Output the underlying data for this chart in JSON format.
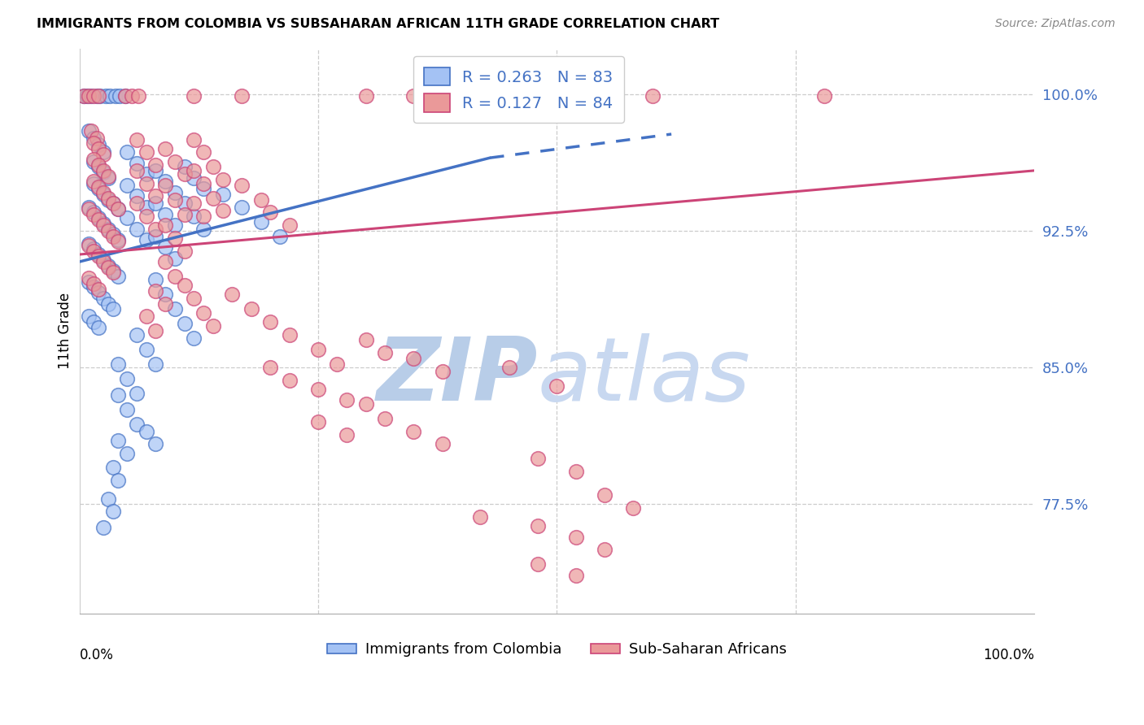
{
  "title": "IMMIGRANTS FROM COLOMBIA VS SUBSAHARAN AFRICAN 11TH GRADE CORRELATION CHART",
  "source": "Source: ZipAtlas.com",
  "ylabel": "11th Grade",
  "yticks": [
    0.775,
    0.85,
    0.925,
    1.0
  ],
  "ytick_labels": [
    "77.5%",
    "85.0%",
    "92.5%",
    "100.0%"
  ],
  "xlim": [
    0.0,
    1.0
  ],
  "ylim": [
    0.715,
    1.025
  ],
  "blue_color": "#a4c2f4",
  "blue_edge": "#4472c4",
  "pink_color": "#ea9999",
  "pink_edge": "#cc4477",
  "watermark_zip": "ZIP",
  "watermark_atlas": "atlas",
  "watermark_color": "#c8d8f0",
  "background_color": "#ffffff",
  "blue_trend_solid": [
    0.0,
    0.908,
    0.43,
    0.965
  ],
  "blue_trend_dashed": [
    0.43,
    0.965,
    0.62,
    0.978
  ],
  "pink_trend": [
    0.0,
    0.912,
    1.0,
    0.958
  ],
  "blue_points": [
    [
      0.005,
      0.999
    ],
    [
      0.008,
      0.999
    ],
    [
      0.012,
      0.999
    ],
    [
      0.018,
      0.999
    ],
    [
      0.022,
      0.999
    ],
    [
      0.028,
      0.999
    ],
    [
      0.032,
      0.999
    ],
    [
      0.038,
      0.999
    ],
    [
      0.042,
      0.999
    ],
    [
      0.048,
      0.999
    ],
    [
      0.01,
      0.98
    ],
    [
      0.015,
      0.976
    ],
    [
      0.02,
      0.972
    ],
    [
      0.025,
      0.968
    ],
    [
      0.015,
      0.963
    ],
    [
      0.02,
      0.96
    ],
    [
      0.025,
      0.957
    ],
    [
      0.03,
      0.954
    ],
    [
      0.015,
      0.951
    ],
    [
      0.02,
      0.948
    ],
    [
      0.025,
      0.945
    ],
    [
      0.03,
      0.942
    ],
    [
      0.035,
      0.94
    ],
    [
      0.04,
      0.937
    ],
    [
      0.01,
      0.938
    ],
    [
      0.015,
      0.935
    ],
    [
      0.02,
      0.932
    ],
    [
      0.025,
      0.929
    ],
    [
      0.03,
      0.926
    ],
    [
      0.035,
      0.923
    ],
    [
      0.04,
      0.92
    ],
    [
      0.01,
      0.918
    ],
    [
      0.015,
      0.915
    ],
    [
      0.02,
      0.912
    ],
    [
      0.025,
      0.909
    ],
    [
      0.03,
      0.906
    ],
    [
      0.035,
      0.903
    ],
    [
      0.04,
      0.9
    ],
    [
      0.01,
      0.897
    ],
    [
      0.015,
      0.894
    ],
    [
      0.02,
      0.891
    ],
    [
      0.025,
      0.888
    ],
    [
      0.03,
      0.885
    ],
    [
      0.035,
      0.882
    ],
    [
      0.01,
      0.878
    ],
    [
      0.015,
      0.875
    ],
    [
      0.02,
      0.872
    ],
    [
      0.05,
      0.968
    ],
    [
      0.06,
      0.962
    ],
    [
      0.07,
      0.956
    ],
    [
      0.05,
      0.95
    ],
    [
      0.06,
      0.944
    ],
    [
      0.07,
      0.938
    ],
    [
      0.05,
      0.932
    ],
    [
      0.06,
      0.926
    ],
    [
      0.07,
      0.92
    ],
    [
      0.08,
      0.958
    ],
    [
      0.09,
      0.952
    ],
    [
      0.1,
      0.946
    ],
    [
      0.08,
      0.94
    ],
    [
      0.09,
      0.934
    ],
    [
      0.1,
      0.928
    ],
    [
      0.08,
      0.922
    ],
    [
      0.09,
      0.916
    ],
    [
      0.1,
      0.91
    ],
    [
      0.11,
      0.96
    ],
    [
      0.12,
      0.954
    ],
    [
      0.13,
      0.948
    ],
    [
      0.11,
      0.94
    ],
    [
      0.12,
      0.933
    ],
    [
      0.13,
      0.926
    ],
    [
      0.15,
      0.945
    ],
    [
      0.17,
      0.938
    ],
    [
      0.19,
      0.93
    ],
    [
      0.21,
      0.922
    ],
    [
      0.08,
      0.898
    ],
    [
      0.09,
      0.89
    ],
    [
      0.1,
      0.882
    ],
    [
      0.11,
      0.874
    ],
    [
      0.12,
      0.866
    ],
    [
      0.06,
      0.868
    ],
    [
      0.07,
      0.86
    ],
    [
      0.08,
      0.852
    ],
    [
      0.04,
      0.852
    ],
    [
      0.05,
      0.844
    ],
    [
      0.06,
      0.836
    ],
    [
      0.04,
      0.835
    ],
    [
      0.05,
      0.827
    ],
    [
      0.06,
      0.819
    ],
    [
      0.07,
      0.815
    ],
    [
      0.08,
      0.808
    ],
    [
      0.04,
      0.81
    ],
    [
      0.05,
      0.803
    ],
    [
      0.035,
      0.795
    ],
    [
      0.04,
      0.788
    ],
    [
      0.03,
      0.778
    ],
    [
      0.035,
      0.771
    ],
    [
      0.025,
      0.762
    ]
  ],
  "pink_points": [
    [
      0.005,
      0.999
    ],
    [
      0.01,
      0.999
    ],
    [
      0.015,
      0.999
    ],
    [
      0.02,
      0.999
    ],
    [
      0.048,
      0.999
    ],
    [
      0.055,
      0.999
    ],
    [
      0.062,
      0.999
    ],
    [
      0.12,
      0.999
    ],
    [
      0.17,
      0.999
    ],
    [
      0.3,
      0.999
    ],
    [
      0.35,
      0.999
    ],
    [
      0.4,
      0.999
    ],
    [
      0.5,
      0.999
    ],
    [
      0.55,
      0.999
    ],
    [
      0.6,
      0.999
    ],
    [
      0.78,
      0.999
    ],
    [
      0.012,
      0.98
    ],
    [
      0.018,
      0.976
    ],
    [
      0.015,
      0.973
    ],
    [
      0.02,
      0.97
    ],
    [
      0.025,
      0.967
    ],
    [
      0.015,
      0.964
    ],
    [
      0.02,
      0.961
    ],
    [
      0.025,
      0.958
    ],
    [
      0.03,
      0.955
    ],
    [
      0.015,
      0.952
    ],
    [
      0.02,
      0.949
    ],
    [
      0.025,
      0.946
    ],
    [
      0.03,
      0.943
    ],
    [
      0.035,
      0.94
    ],
    [
      0.04,
      0.937
    ],
    [
      0.01,
      0.937
    ],
    [
      0.015,
      0.934
    ],
    [
      0.02,
      0.931
    ],
    [
      0.025,
      0.928
    ],
    [
      0.03,
      0.925
    ],
    [
      0.035,
      0.922
    ],
    [
      0.04,
      0.919
    ],
    [
      0.01,
      0.917
    ],
    [
      0.015,
      0.914
    ],
    [
      0.02,
      0.911
    ],
    [
      0.025,
      0.908
    ],
    [
      0.03,
      0.905
    ],
    [
      0.035,
      0.902
    ],
    [
      0.01,
      0.899
    ],
    [
      0.015,
      0.896
    ],
    [
      0.02,
      0.893
    ],
    [
      0.06,
      0.975
    ],
    [
      0.07,
      0.968
    ],
    [
      0.08,
      0.961
    ],
    [
      0.06,
      0.958
    ],
    [
      0.07,
      0.951
    ],
    [
      0.08,
      0.944
    ],
    [
      0.06,
      0.94
    ],
    [
      0.07,
      0.933
    ],
    [
      0.08,
      0.926
    ],
    [
      0.09,
      0.97
    ],
    [
      0.1,
      0.963
    ],
    [
      0.11,
      0.956
    ],
    [
      0.09,
      0.95
    ],
    [
      0.1,
      0.942
    ],
    [
      0.11,
      0.934
    ],
    [
      0.09,
      0.928
    ],
    [
      0.1,
      0.921
    ],
    [
      0.11,
      0.914
    ],
    [
      0.12,
      0.975
    ],
    [
      0.13,
      0.968
    ],
    [
      0.12,
      0.958
    ],
    [
      0.13,
      0.951
    ],
    [
      0.12,
      0.94
    ],
    [
      0.13,
      0.933
    ],
    [
      0.14,
      0.96
    ],
    [
      0.15,
      0.953
    ],
    [
      0.14,
      0.943
    ],
    [
      0.15,
      0.936
    ],
    [
      0.17,
      0.95
    ],
    [
      0.19,
      0.942
    ],
    [
      0.2,
      0.935
    ],
    [
      0.22,
      0.928
    ],
    [
      0.09,
      0.908
    ],
    [
      0.1,
      0.9
    ],
    [
      0.11,
      0.895
    ],
    [
      0.12,
      0.888
    ],
    [
      0.13,
      0.88
    ],
    [
      0.14,
      0.873
    ],
    [
      0.08,
      0.892
    ],
    [
      0.09,
      0.885
    ],
    [
      0.07,
      0.878
    ],
    [
      0.08,
      0.87
    ],
    [
      0.16,
      0.89
    ],
    [
      0.18,
      0.882
    ],
    [
      0.2,
      0.875
    ],
    [
      0.22,
      0.868
    ],
    [
      0.25,
      0.86
    ],
    [
      0.27,
      0.852
    ],
    [
      0.3,
      0.865
    ],
    [
      0.32,
      0.858
    ],
    [
      0.35,
      0.855
    ],
    [
      0.38,
      0.848
    ],
    [
      0.2,
      0.85
    ],
    [
      0.22,
      0.843
    ],
    [
      0.25,
      0.838
    ],
    [
      0.28,
      0.832
    ],
    [
      0.25,
      0.82
    ],
    [
      0.28,
      0.813
    ],
    [
      0.3,
      0.83
    ],
    [
      0.32,
      0.822
    ],
    [
      0.35,
      0.815
    ],
    [
      0.38,
      0.808
    ],
    [
      0.45,
      0.85
    ],
    [
      0.5,
      0.84
    ],
    [
      0.48,
      0.8
    ],
    [
      0.52,
      0.793
    ],
    [
      0.55,
      0.78
    ],
    [
      0.58,
      0.773
    ],
    [
      0.42,
      0.768
    ],
    [
      0.48,
      0.763
    ],
    [
      0.52,
      0.757
    ],
    [
      0.55,
      0.75
    ],
    [
      0.48,
      0.742
    ],
    [
      0.52,
      0.736
    ]
  ]
}
